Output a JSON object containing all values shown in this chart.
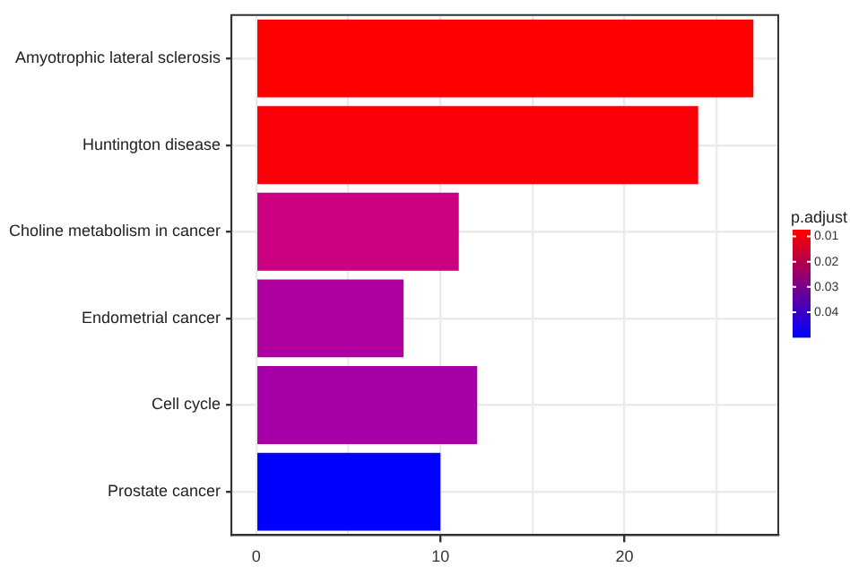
{
  "chart_data": {
    "type": "bar",
    "orientation": "horizontal",
    "categories": [
      "Amyotrophic lateral sclerosis",
      "Huntington disease",
      "Choline metabolism in cancer",
      "Endometrial cancer",
      "Cell cycle",
      "Prostate cancer"
    ],
    "values": [
      27,
      24,
      11,
      8,
      12,
      10
    ],
    "colors": [
      "#ff0000",
      "#fb0007",
      "#cc0080",
      "#b000a0",
      "#a800a8",
      "#0000ff"
    ],
    "xlim": [
      -1.35,
      28.35
    ],
    "xticks": [
      0,
      {
        "value": 5,
        "label": null
      },
      10,
      {
        "value": 15,
        "label": null
      },
      20,
      {
        "value": 25,
        "label": null
      }
    ],
    "grid": true,
    "clabel": "p.adjust",
    "clim": [
      0.0073,
      0.05
    ],
    "cticks": [
      0.01,
      0.02,
      0.03,
      0.04
    ]
  }
}
